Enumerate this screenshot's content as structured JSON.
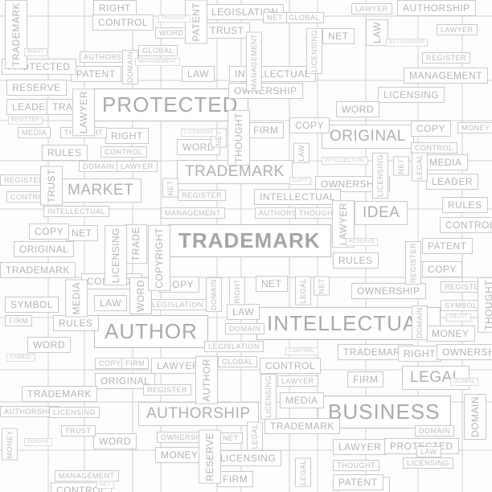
{
  "words": {
    "protected": "PROTECTED",
    "trademark": "TRADEMARK",
    "author": "AUTHOR",
    "intellectual": "INTELLECTUAL",
    "business": "BUSINESS",
    "original": "ORIGINAL",
    "idea": "IDEA",
    "market": "MARKET",
    "authorship": "AUTHORSHIP",
    "legal": "LEGAL",
    "patent": "PATENT",
    "ownership": "OWNERSHIP",
    "licensing": "LICENSING",
    "rules": "RULES",
    "word": "WORD",
    "leader": "LEADER",
    "lawyer": "LAWYER",
    "copy": "COPY",
    "control": "CONTROL",
    "firm": "FIRM",
    "net": "NET",
    "law": "LAW",
    "trust": "TRUST",
    "legislation": "LEGISLATION",
    "management": "MANAGEMENT",
    "reserve": "RESERVE",
    "right": "RIGHT",
    "domain": "DOMAIN",
    "thought": "THOUGHT",
    "money": "MONEY",
    "media": "MEDIA",
    "global": "GLOBAL",
    "symbol": "SYMBOL",
    "register": "REGISTER",
    "copyright": "COPYRIGHT",
    "trade": "TRADE"
  }
}
